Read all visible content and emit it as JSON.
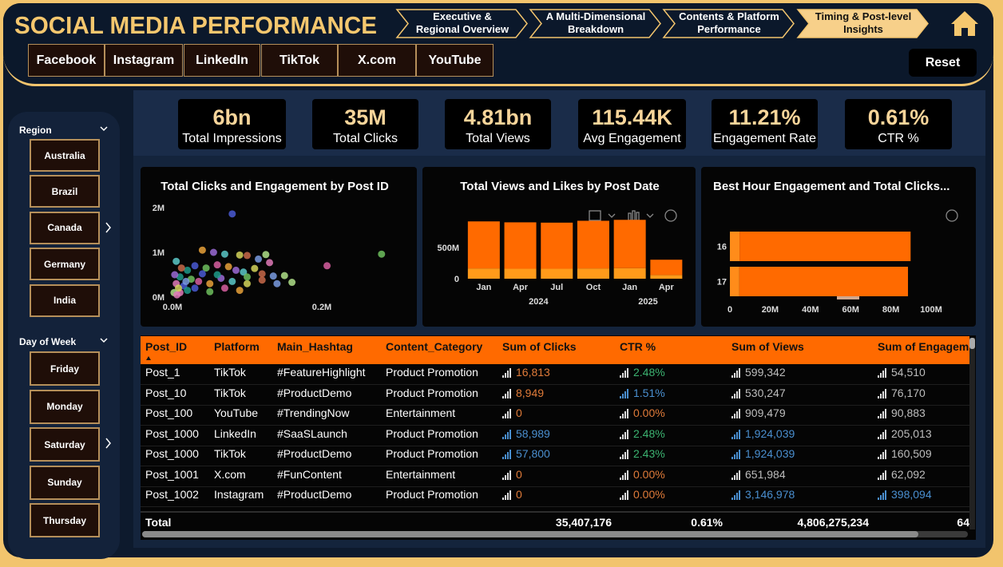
{
  "header": {
    "title": "SOCIAL MEDIA PERFORMANCE",
    "tabs": [
      {
        "lines": [
          "Executive &",
          "Regional Overview"
        ],
        "active": false
      },
      {
        "lines": [
          "A Multi-Dimensional",
          "Breakdown"
        ],
        "active": false
      },
      {
        "lines": [
          "Contents & Platform",
          "Performance"
        ],
        "active": false
      },
      {
        "lines": [
          "Timing & Post-level",
          "Insights"
        ],
        "active": true
      }
    ],
    "platforms": [
      "Facebook",
      "Instagram",
      "LinkedIn",
      "TikTok",
      "X.com",
      "YouTube"
    ],
    "reset": "Reset"
  },
  "sidebar": {
    "region_label": "Region",
    "regions": [
      "Australia",
      "Brazil",
      "Canada",
      "Germany",
      "India"
    ],
    "day_label": "Day of Week",
    "days": [
      "Friday",
      "Monday",
      "Saturday",
      "Sunday",
      "Thursday"
    ]
  },
  "kpis": [
    {
      "value": "6bn",
      "label": "Total Impressions"
    },
    {
      "value": "35M",
      "label": "Total Clicks"
    },
    {
      "value": "4.81bn",
      "label": "Total Views"
    },
    {
      "value": "115.44K",
      "label": "Avg Engagement"
    },
    {
      "value": "11.21%",
      "label": "Engagement Rate"
    },
    {
      "value": "0.61%",
      "label": "CTR %"
    }
  ],
  "chart_data": [
    {
      "type": "scatter",
      "title": "Total Clicks and Engagement by Post ID",
      "xlim": [
        0,
        300000
      ],
      "xticks": [
        {
          "value": 0,
          "label": "0.0M"
        },
        {
          "value": 200000,
          "label": "0.2M"
        }
      ],
      "ylim": [
        0,
        2000000
      ],
      "yticks": [
        {
          "value": 0,
          "label": "0M"
        },
        {
          "value": 1000000,
          "label": "1M"
        },
        {
          "value": 2000000,
          "label": "2M"
        }
      ],
      "palette": [
        "#4a5bd4",
        "#6fbf5e",
        "#d75fa0",
        "#e8a13a",
        "#9b6bd6",
        "#5cc8c8",
        "#d4d45a",
        "#c86a4a",
        "#7a9be0",
        "#b0e08a",
        "#e07ab8",
        "#1f9a8a"
      ],
      "series": [
        {
          "x": [
            80000,
            280000,
            207000,
            40000,
            55000,
            70000,
            90000,
            100000,
            115000,
            125000,
            130000,
            20000,
            30000,
            45000,
            60000,
            75000,
            85000,
            95000,
            110000,
            120000,
            135000,
            150000,
            5000,
            10000,
            15000,
            25000,
            35000,
            50000,
            65000,
            80000,
            100000,
            120000,
            140000,
            160000,
            10000,
            20000,
            30000,
            50000,
            70000,
            90000,
            3000,
            5000,
            8000,
            12000,
            18000,
            2000,
            6000,
            60000,
            40000,
            100000
          ],
          "values": [
            1860000,
            960000,
            700000,
            1050000,
            1000000,
            960000,
            940000,
            930000,
            850000,
            950000,
            770000,
            600000,
            700000,
            650000,
            720000,
            680000,
            600000,
            560000,
            640000,
            520000,
            470000,
            480000,
            300000,
            450000,
            250000,
            400000,
            350000,
            300000,
            420000,
            350000,
            300000,
            380000,
            300000,
            330000,
            100000,
            150000,
            200000,
            120000,
            200000,
            150000,
            500000,
            800000,
            200000,
            650000,
            350000,
            100000,
            50000,
            500000,
            520000,
            450000
          ]
        }
      ]
    },
    {
      "type": "bar",
      "stacked": true,
      "title": "Total Views and Likes by Post Date",
      "categories": [
        "Jan",
        "Apr",
        "Jul",
        "Oct",
        "Jan",
        "Apr"
      ],
      "groups": [
        {
          "label": "2024",
          "span": 4
        },
        {
          "label": "2025",
          "span": 2
        }
      ],
      "ylim": [
        0,
        1000000000
      ],
      "yticks": [
        0,
        {
          "value": 500000000,
          "label": "500M"
        }
      ],
      "series": [
        {
          "color": "#ff9a1a",
          "values": [
            165000000,
            160000000,
            160000000,
            165000000,
            170000000,
            60000000
          ]
        },
        {
          "color": "#ff6a00",
          "values": [
            755000000,
            745000000,
            740000000,
            765000000,
            775000000,
            245000000
          ]
        }
      ]
    },
    {
      "type": "bar",
      "stacked": true,
      "horizontal": true,
      "title": "Best Hour Engagement and Total Clicks...",
      "categories": [
        "16",
        "17"
      ],
      "xlim": [
        0,
        100000000
      ],
      "xticks": [
        0,
        {
          "value": 20000000,
          "label": "20M"
        },
        {
          "value": 40000000,
          "label": "40M"
        },
        {
          "value": 60000000,
          "label": "60M"
        },
        {
          "value": 80000000,
          "label": "80M"
        },
        {
          "value": 100000000,
          "label": "100M"
        }
      ],
      "series": [
        {
          "color": "#ff8c1a",
          "values": [
            4800000,
            4700000
          ]
        },
        {
          "color": "#ff6a00",
          "values": [
            85000000,
            83800000
          ]
        }
      ]
    }
  ],
  "table": {
    "columns": [
      "Post_ID",
      "Platform",
      "Main_Hashtag",
      "Content_Category",
      "Sum of Clicks",
      "CTR %",
      "Sum of Views",
      "Sum of Engagem"
    ],
    "rows": [
      [
        "Post_1",
        "TikTok",
        "#FeatureHighlight",
        "Product Promotion",
        "16,813",
        "2.48%",
        "599,342",
        "54,510"
      ],
      [
        "Post_10",
        "TikTok",
        "#ProductDemo",
        "Product Promotion",
        "8,949",
        "1.51%",
        "530,247",
        "76,170"
      ],
      [
        "Post_100",
        "YouTube",
        "#TrendingNow",
        "Entertainment",
        "0",
        "0.00%",
        "909,479",
        "90,883"
      ],
      [
        "Post_1000",
        "LinkedIn",
        "#SaaSLaunch",
        "Product Promotion",
        "58,989",
        "2.48%",
        "1,924,039",
        "205,013"
      ],
      [
        "Post_1000",
        "TikTok",
        "#ProductDemo",
        "Product Promotion",
        "57,800",
        "2.43%",
        "1,924,039",
        "160,509"
      ],
      [
        "Post_1001",
        "X.com",
        "#FunContent",
        "Entertainment",
        "0",
        "0.00%",
        "651,984",
        "62,092"
      ],
      [
        "Post_1002",
        "Instagram",
        "#ProductDemo",
        "Product Promotion",
        "0",
        "0.00%",
        "3,146,978",
        "398,094"
      ]
    ],
    "cell_colors": [
      [
        "#e07b39",
        "#3cb371",
        "#bdbdbd",
        "#bdbdbd"
      ],
      [
        "#e07b39",
        "#4a8fd0",
        "#bdbdbd",
        "#bdbdbd"
      ],
      [
        "#e07b39",
        "#e07b39",
        "#bdbdbd",
        "#bdbdbd"
      ],
      [
        "#4a8fd0",
        "#3cb371",
        "#4a8fd0",
        "#bdbdbd"
      ],
      [
        "#4a8fd0",
        "#3cb371",
        "#4a8fd0",
        "#bdbdbd"
      ],
      [
        "#e07b39",
        "#e07b39",
        "#bdbdbd",
        "#bdbdbd"
      ],
      [
        "#e07b39",
        "#e07b39",
        "#4a8fd0",
        "#4a8fd0"
      ]
    ],
    "total": {
      "label": "Total",
      "values": [
        "35,407,176",
        "0.61%",
        "4,806,275,234",
        "64"
      ]
    }
  }
}
